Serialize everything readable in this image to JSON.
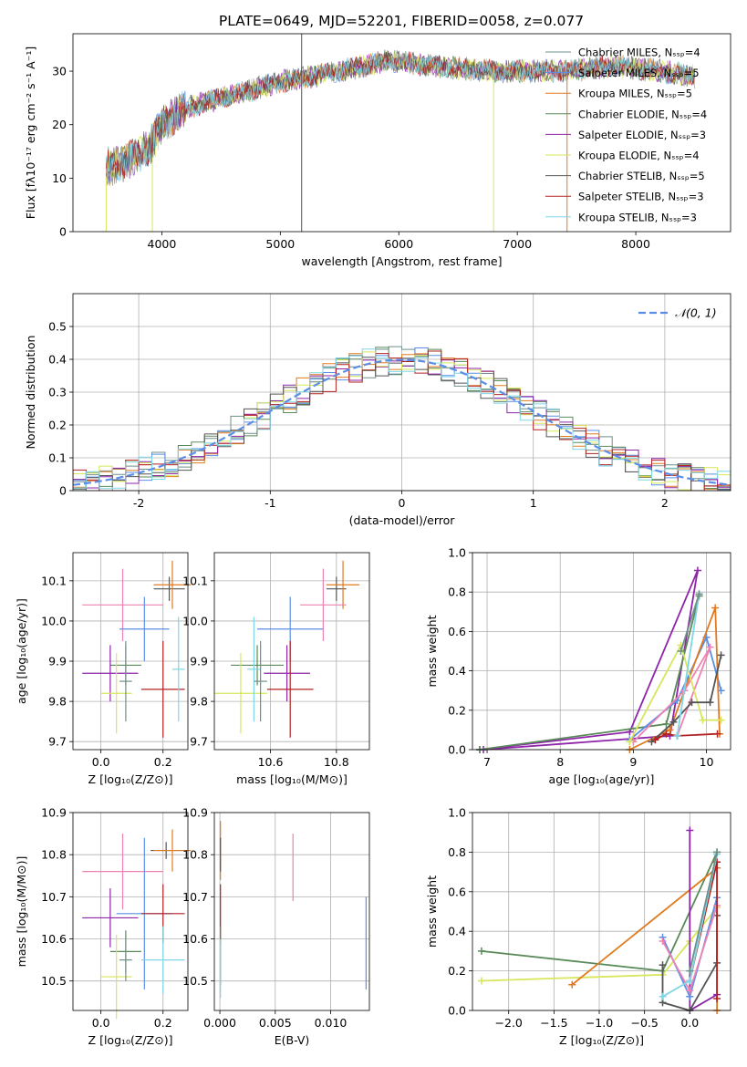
{
  "title": "PLATE=0649, MJD=52201, FIBERID=0058, z=0.077",
  "colors": {
    "Chabrier MILES": "#6f8f8b",
    "Salpeter MILES": "#5b8ee6",
    "Kroupa MILES": "#e07a1f",
    "Chabrier ELODIE": "#5a8a5a",
    "Salpeter ELODIE": "#8e24aa",
    "Kroupa ELODIE": "#d7e65a",
    "Chabrier STELIB": "#555555",
    "Salpeter STELIB": "#b22222",
    "Kroupa STELIB": "#7fd6e6",
    "gauss": "#5b8ee6",
    "pink": "#ee82b0"
  },
  "chart_data": [
    {
      "type": "line",
      "name": "spectrum",
      "xlabel": "wavelength [Angstrom, rest frame]",
      "ylabel": "Flux [fλ10⁻¹⁷ erg cm⁻² s⁻¹ A⁻¹]",
      "xlim": [
        3250,
        8800
      ],
      "ylim": [
        0,
        37
      ],
      "xticks": [
        4000,
        5000,
        6000,
        7000,
        8000
      ],
      "yticks": [
        0,
        10,
        20,
        30
      ],
      "grid": false,
      "legend_placement": "right",
      "legend": [
        {
          "label": "Chabrier MILES, Nₛₛₚ=4",
          "color": "#6f8f8b"
        },
        {
          "label": "Salpeter MILES, Nₛₛₚ=5",
          "color": "#5b8ee6"
        },
        {
          "label": "Kroupa MILES, Nₛₛₚ=5",
          "color": "#e07a1f"
        },
        {
          "label": "Chabrier ELODIE, Nₛₛₚ=4",
          "color": "#5a8a5a"
        },
        {
          "label": "Salpeter ELODIE, Nₛₛₚ=3",
          "color": "#8e24aa"
        },
        {
          "label": "Kroupa ELODIE, Nₛₛₚ=4",
          "color": "#d7e65a"
        },
        {
          "label": "Chabrier STELIB, Nₛₛₚ=5",
          "color": "#555555"
        },
        {
          "label": "Salpeter STELIB, Nₛₛₚ=3",
          "color": "#b22222"
        },
        {
          "label": "Kroupa STELIB, Nₛₛₚ=3",
          "color": "#7fd6e6"
        }
      ],
      "continuum": [
        [
          3530,
          12
        ],
        [
          3700,
          13
        ],
        [
          3900,
          16
        ],
        [
          4000,
          20
        ],
        [
          4200,
          23
        ],
        [
          4500,
          25
        ],
        [
          5000,
          28
        ],
        [
          5500,
          30
        ],
        [
          5900,
          32
        ],
        [
          6300,
          31
        ],
        [
          6800,
          30
        ],
        [
          7200,
          30
        ],
        [
          7400,
          30
        ],
        [
          7800,
          31
        ],
        [
          8200,
          30
        ],
        [
          8500,
          29
        ]
      ],
      "spikes": [
        [
          5180,
          0,
          37
        ],
        [
          6800,
          0,
          31
        ],
        [
          3920,
          0,
          14
        ],
        [
          7420,
          0,
          31
        ],
        [
          3530,
          0,
          10
        ]
      ]
    },
    {
      "type": "line",
      "name": "residual-histogram",
      "xlabel": "(data-model)/error",
      "ylabel": "Normed distribution",
      "xlim": [
        -2.5,
        2.5
      ],
      "ylim": [
        0,
        0.6
      ],
      "xticks": [
        -2,
        -1,
        0,
        1,
        2
      ],
      "yticks": [
        0.0,
        0.1,
        0.2,
        0.3,
        0.4,
        0.5
      ],
      "grid": true,
      "legend_placement": "top-right",
      "legend": [
        {
          "label": "𝒩(0, 1)",
          "color": "#5b8ee6"
        }
      ],
      "bin_width": 0.1
    },
    {
      "type": "scatter",
      "name": "age-vs-Z",
      "xlabel": "Z [log₁₀(Z/Z⊙)]",
      "ylabel": "age  [log₁₀(age/yr)]",
      "xlim": [
        -0.09,
        0.28
      ],
      "ylim": [
        9.68,
        10.17
      ],
      "xticks": [
        0.0,
        0.2
      ],
      "xtick_labels": [
        "0.0",
        "0.2"
      ],
      "yticks": [
        9.7,
        9.8,
        9.9,
        10.0,
        10.1
      ],
      "ytick_labels": [
        "9.7",
        "9.8",
        "9.9",
        "10.0",
        "10.1"
      ],
      "grid": true,
      "points": [
        {
          "x": 0.22,
          "y": 10.08,
          "xerr": 0.05,
          "yerr": 0.03,
          "color": "#555555"
        },
        {
          "x": 0.23,
          "y": 10.09,
          "xerr": 0.06,
          "yerr": 0.06,
          "color": "#e07a1f"
        },
        {
          "x": 0.07,
          "y": 10.04,
          "xerr": 0.13,
          "yerr": 0.09,
          "color": "#ee82b0"
        },
        {
          "x": 0.14,
          "y": 9.98,
          "xerr": 0.08,
          "yerr": 0.08,
          "color": "#5b8ee6"
        },
        {
          "x": 0.08,
          "y": 9.89,
          "xerr": 0.05,
          "yerr": 0.05,
          "color": "#5a8a5a"
        },
        {
          "x": 0.03,
          "y": 9.87,
          "xerr": 0.09,
          "yerr": 0.07,
          "color": "#8e24aa"
        },
        {
          "x": 0.05,
          "y": 9.82,
          "xerr": 0.05,
          "yerr": 0.1,
          "color": "#d7e65a"
        },
        {
          "x": 0.2,
          "y": 9.83,
          "xerr": 0.07,
          "yerr": 0.12,
          "color": "#b22222"
        },
        {
          "x": 0.25,
          "y": 9.88,
          "xerr": 0.02,
          "yerr": 0.13,
          "color": "#7fd6e6"
        },
        {
          "x": 0.08,
          "y": 9.85,
          "xerr": 0.02,
          "yerr": 0.1,
          "color": "#6f8f8b"
        }
      ]
    },
    {
      "type": "scatter",
      "name": "age-vs-mass",
      "xlabel": "mass [log₁₀(M/M⊙)]",
      "ylabel": "",
      "xlim": [
        10.43,
        10.9
      ],
      "ylim": [
        9.68,
        10.17
      ],
      "xticks": [
        10.6,
        10.8
      ],
      "xtick_labels": [
        "10.6",
        "10.8"
      ],
      "yticks": [
        9.7,
        9.8,
        9.9,
        10.0,
        10.1
      ],
      "ytick_labels": [
        "9.7",
        "9.8",
        "9.9",
        "10.0",
        "10.1"
      ],
      "grid": true,
      "points": [
        {
          "x": 10.8,
          "y": 10.08,
          "xerr": 0.03,
          "yerr": 0.03,
          "color": "#555555"
        },
        {
          "x": 10.82,
          "y": 10.09,
          "xerr": 0.05,
          "yerr": 0.06,
          "color": "#e07a1f"
        },
        {
          "x": 10.76,
          "y": 10.04,
          "xerr": 0.07,
          "yerr": 0.09,
          "color": "#ee82b0"
        },
        {
          "x": 10.66,
          "y": 9.98,
          "xerr": 0.1,
          "yerr": 0.08,
          "color": "#5b8ee6"
        },
        {
          "x": 10.56,
          "y": 9.89,
          "xerr": 0.08,
          "yerr": 0.05,
          "color": "#5a8a5a"
        },
        {
          "x": 10.65,
          "y": 9.87,
          "xerr": 0.07,
          "yerr": 0.07,
          "color": "#8e24aa"
        },
        {
          "x": 10.51,
          "y": 9.82,
          "xerr": 0.08,
          "yerr": 0.1,
          "color": "#d7e65a"
        },
        {
          "x": 10.66,
          "y": 9.83,
          "xerr": 0.07,
          "yerr": 0.12,
          "color": "#b22222"
        },
        {
          "x": 10.55,
          "y": 9.88,
          "xerr": 0.02,
          "yerr": 0.13,
          "color": "#7fd6e6"
        },
        {
          "x": 10.57,
          "y": 9.85,
          "xerr": 0.02,
          "yerr": 0.1,
          "color": "#6f8f8b"
        }
      ]
    },
    {
      "type": "line",
      "name": "mass-weight-vs-age",
      "xlabel": "age  [log₁₀(age/yr)]",
      "ylabel": "mass weight",
      "xlim": [
        6.8,
        10.33
      ],
      "ylim": [
        0,
        1
      ],
      "xticks": [
        7,
        8,
        9,
        10
      ],
      "xtick_labels": [
        "7",
        "8",
        "9",
        "10"
      ],
      "yticks": [
        0.0,
        0.2,
        0.4,
        0.6,
        0.8,
        1.0
      ],
      "ytick_labels": [
        "0.0",
        "0.2",
        "0.4",
        "0.6",
        "0.8",
        "1.0"
      ],
      "grid": true,
      "series": [
        {
          "color": "#8e24aa",
          "points": [
            [
              6.9,
              0.0
            ],
            [
              8.95,
              0.09
            ],
            [
              9.88,
              0.91
            ],
            [
              9.5,
              0.07
            ],
            [
              6.95,
              0.0
            ]
          ]
        },
        {
          "color": "#5a8a5a",
          "points": [
            [
              6.9,
              0.0
            ],
            [
              9.45,
              0.13
            ],
            [
              9.9,
              0.78
            ]
          ]
        },
        {
          "color": "#5b8ee6",
          "points": [
            [
              8.95,
              0.05
            ],
            [
              9.6,
              0.25
            ],
            [
              10.0,
              0.57
            ],
            [
              10.2,
              0.3
            ]
          ]
        },
        {
          "color": "#e07a1f",
          "points": [
            [
              8.95,
              0.0
            ],
            [
              9.5,
              0.1
            ],
            [
              10.12,
              0.72
            ],
            [
              10.18,
              0.08
            ]
          ]
        },
        {
          "color": "#ee82b0",
          "points": [
            [
              9.0,
              0.04
            ],
            [
              9.7,
              0.3
            ],
            [
              10.05,
              0.52
            ],
            [
              9.6,
              0.07
            ]
          ]
        },
        {
          "color": "#d7e65a",
          "points": [
            [
              8.95,
              0.04
            ],
            [
              9.65,
              0.53
            ],
            [
              9.95,
              0.15
            ],
            [
              10.2,
              0.15
            ]
          ]
        },
        {
          "color": "#555555",
          "points": [
            [
              9.25,
              0.04
            ],
            [
              9.55,
              0.14
            ],
            [
              9.8,
              0.24
            ],
            [
              10.05,
              0.24
            ],
            [
              10.2,
              0.48
            ]
          ]
        },
        {
          "color": "#b22222",
          "points": [
            [
              9.3,
              0.05
            ],
            [
              9.45,
              0.08
            ],
            [
              9.6,
              0.07
            ],
            [
              10.15,
              0.08
            ]
          ]
        },
        {
          "color": "#7fd6e6",
          "points": [
            [
              9.6,
              0.07
            ],
            [
              9.9,
              0.79
            ]
          ]
        },
        {
          "color": "#6f8f8b",
          "points": [
            [
              9.65,
              0.5
            ],
            [
              9.9,
              0.79
            ]
          ]
        }
      ]
    },
    {
      "type": "scatter",
      "name": "mass-vs-Z",
      "xlabel": "Z [log₁₀(Z/Z⊙)]",
      "ylabel": "mass [log₁₀(M/M⊙)]",
      "xlim": [
        -0.09,
        0.28
      ],
      "ylim": [
        10.43,
        10.9
      ],
      "xticks": [
        0.0,
        0.2
      ],
      "xtick_labels": [
        "0.0",
        "0.2"
      ],
      "yticks": [
        10.5,
        10.6,
        10.7,
        10.8,
        10.9
      ],
      "ytick_labels": [
        "10.5",
        "10.6",
        "10.7",
        "10.8",
        "10.9"
      ],
      "grid": true,
      "points": [
        {
          "x": 0.21,
          "y": 10.81,
          "xerr": 0.05,
          "yerr": 0.02,
          "color": "#555555"
        },
        {
          "x": 0.23,
          "y": 10.81,
          "xerr": 0.06,
          "yerr": 0.05,
          "color": "#e07a1f"
        },
        {
          "x": 0.07,
          "y": 10.76,
          "xerr": 0.13,
          "yerr": 0.09,
          "color": "#ee82b0"
        },
        {
          "x": 0.14,
          "y": 10.66,
          "xerr": 0.09,
          "yerr": 0.18,
          "color": "#5b8ee6"
        },
        {
          "x": 0.08,
          "y": 10.57,
          "xerr": 0.05,
          "yerr": 0.05,
          "color": "#5a8a5a"
        },
        {
          "x": 0.03,
          "y": 10.65,
          "xerr": 0.09,
          "yerr": 0.07,
          "color": "#8e24aa"
        },
        {
          "x": 0.05,
          "y": 10.51,
          "xerr": 0.05,
          "yerr": 0.1,
          "color": "#d7e65a"
        },
        {
          "x": 0.2,
          "y": 10.66,
          "xerr": 0.07,
          "yerr": 0.07,
          "color": "#b22222"
        },
        {
          "x": 0.2,
          "y": 10.55,
          "xerr": 0.07,
          "yerr": 0.08,
          "color": "#7fd6e6"
        },
        {
          "x": 0.08,
          "y": 10.55,
          "xerr": 0.02,
          "yerr": 0.05,
          "color": "#6f8f8b"
        }
      ]
    },
    {
      "type": "scatter",
      "name": "mass-vs-EBV",
      "xlabel": "E(B-V)",
      "ylabel": "",
      "xlim": [
        -0.0005,
        0.0135
      ],
      "ylim": [
        10.43,
        10.9
      ],
      "xticks": [
        0.0,
        0.005,
        0.01
      ],
      "xtick_labels": [
        "0.000",
        "0.005",
        "0.010"
      ],
      "yticks": [
        10.5,
        10.6,
        10.7,
        10.8,
        10.9
      ],
      "ytick_labels": [
        "10.5",
        "10.6",
        "10.7",
        "10.8",
        "10.9"
      ],
      "grid": true,
      "points": [
        {
          "x": 5e-05,
          "y": 10.81,
          "xerr": 0,
          "yerr": 0.07,
          "color": "#e07a1f"
        },
        {
          "x": 5e-05,
          "y": 10.8,
          "xerr": 0,
          "yerr": 0.04,
          "color": "#555555"
        },
        {
          "x": 5e-05,
          "y": 10.66,
          "xerr": 0,
          "yerr": 0.07,
          "color": "#b22222"
        },
        {
          "x": 5e-05,
          "y": 10.56,
          "xerr": 0,
          "yerr": 0.07,
          "color": "#5a8a5a"
        },
        {
          "x": 5e-05,
          "y": 10.53,
          "xerr": 0,
          "yerr": 0.07,
          "color": "#7fd6e6"
        },
        {
          "x": 0.0066,
          "y": 10.77,
          "xerr": 0,
          "yerr": 0.08,
          "color": "#ee82b0"
        },
        {
          "x": 0.0132,
          "y": 10.59,
          "xerr": 0,
          "yerr": 0.11,
          "color": "#5b8ee6"
        }
      ]
    },
    {
      "type": "line",
      "name": "mass-weight-vs-Z",
      "xlabel": "Z [log₁₀(Z/Z⊙)]",
      "ylabel": "mass weight",
      "xlim": [
        -2.4,
        0.45
      ],
      "ylim": [
        0,
        1
      ],
      "xticks": [
        -2.0,
        -1.5,
        -1.0,
        -0.5,
        0.0
      ],
      "xtick_labels": [
        "−2.0",
        "−1.5",
        "−1.0",
        "−0.5",
        "0.0"
      ],
      "yticks": [
        0.0,
        0.2,
        0.4,
        0.6,
        0.8,
        1.0
      ],
      "ytick_labels": [
        "0.0",
        "0.2",
        "0.4",
        "0.6",
        "0.8",
        "1.0"
      ],
      "grid": true,
      "series": [
        {
          "color": "#5a8a5a",
          "points": [
            [
              -2.3,
              0.3
            ],
            [
              -0.3,
              0.2
            ],
            [
              0.3,
              0.8
            ]
          ]
        },
        {
          "color": "#d7e65a",
          "points": [
            [
              -2.3,
              0.15
            ],
            [
              -0.3,
              0.18
            ],
            [
              0.0,
              0.35
            ],
            [
              0.3,
              0.52
            ]
          ]
        },
        {
          "color": "#e07a1f",
          "points": [
            [
              -1.3,
              0.13
            ],
            [
              0.3,
              0.72
            ],
            [
              0.3,
              0.0
            ]
          ]
        },
        {
          "color": "#8e24aa",
          "points": [
            [
              0.0,
              0.91
            ],
            [
              0.0,
              0.0
            ],
            [
              0.3,
              0.08
            ]
          ]
        },
        {
          "color": "#555555",
          "points": [
            [
              -0.3,
              0.23
            ],
            [
              -0.3,
              0.04
            ],
            [
              0.0,
              0.0
            ],
            [
              0.3,
              0.24
            ],
            [
              0.3,
              0.48
            ]
          ]
        },
        {
          "color": "#5b8ee6",
          "points": [
            [
              -0.3,
              0.37
            ],
            [
              0.0,
              0.07
            ],
            [
              0.3,
              0.57
            ]
          ]
        },
        {
          "color": "#ee82b0",
          "points": [
            [
              -0.3,
              0.35
            ],
            [
              0.0,
              0.1
            ],
            [
              0.3,
              0.53
            ]
          ]
        },
        {
          "color": "#b22222",
          "points": [
            [
              0.0,
              0.15
            ],
            [
              0.3,
              0.75
            ],
            [
              0.3,
              0.06
            ]
          ]
        },
        {
          "color": "#7fd6e6",
          "points": [
            [
              -0.3,
              0.07
            ],
            [
              0.0,
              0.15
            ],
            [
              0.3,
              0.79
            ]
          ]
        },
        {
          "color": "#6f8f8b",
          "points": [
            [
              0.0,
              0.2
            ],
            [
              0.3,
              0.8
            ]
          ]
        }
      ]
    }
  ]
}
